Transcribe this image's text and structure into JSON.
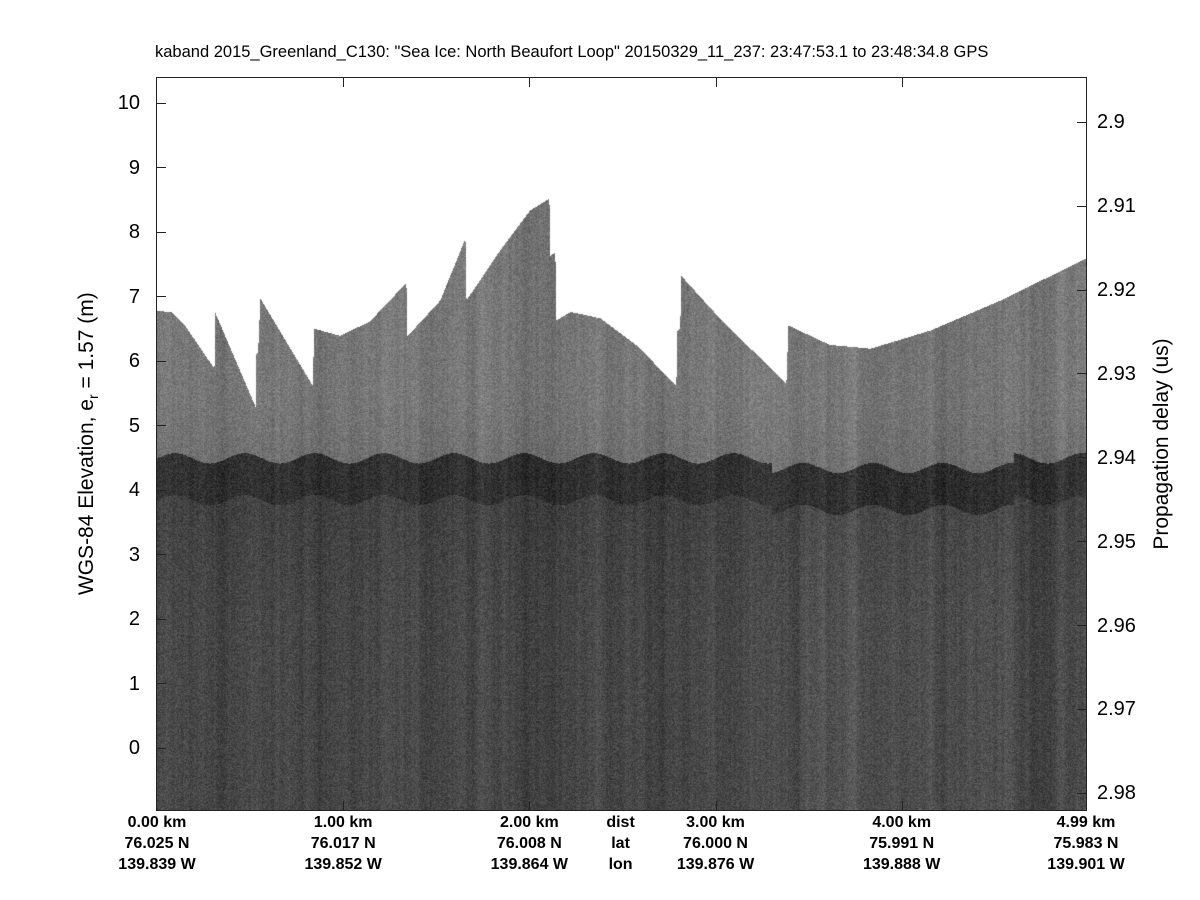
{
  "chart_data": {
    "type": "heatmap",
    "title": "kaband 2015_Greenland_C130: \"Sea Ice: North Beaufort Loop\"  20150329_11_237: 23:47:53.1 to 23:48:34.8 GPS",
    "ylabel": {
      "prefix": "WGS-84 Elevation, e",
      "subscript": "r",
      "suffix": " = 1.57 (m)"
    },
    "y2label": "Propagation delay (us)",
    "ylim": [
      -0.96,
      10.39
    ],
    "y2lim": [
      2.982,
      2.8947
    ],
    "xlim_km": [
      0,
      4.99
    ],
    "yticks": [
      0,
      1,
      2,
      3,
      4,
      5,
      6,
      7,
      8,
      9,
      10
    ],
    "y2ticks": [
      "2.9",
      "2.91",
      "2.92",
      "2.93",
      "2.94",
      "2.95",
      "2.96",
      "2.97",
      "2.98"
    ],
    "colormap": "gray",
    "x_columns": [
      {
        "km": 0,
        "dist": "0.00 km",
        "lat": "76.025 N",
        "lon": "139.839 W"
      },
      {
        "km": 1,
        "dist": "1.00 km",
        "lat": "76.017 N",
        "lon": "139.852 W"
      },
      {
        "km": 2,
        "dist": "2.00 km",
        "lat": "76.008 N",
        "lon": "139.864 W"
      },
      {
        "km": 2.49,
        "dist": "dist",
        "lat": "lat",
        "lon": "lon"
      },
      {
        "km": 3,
        "dist": "3.00 km",
        "lat": "76.000 N",
        "lon": "139.876 W"
      },
      {
        "km": 4,
        "dist": "4.00 km",
        "lat": "75.991 N",
        "lon": "139.888 W"
      },
      {
        "km": 4.99,
        "dist": "4.99 km",
        "lat": "75.983 N",
        "lon": "139.901 W"
      }
    ],
    "data_top_edge": {
      "distance_km": [
        0,
        0.08,
        0.15,
        0.306,
        0.31,
        0.527,
        0.532,
        0.54,
        0.553,
        0.833,
        0.843,
        0.98,
        1.14,
        1.337,
        1.342,
        1.52,
        1.654,
        1.66,
        1.84,
        2.0,
        2.105,
        2.11,
        2.137,
        2.143,
        2.22,
        2.38,
        2.57,
        2.787,
        2.792,
        2.808,
        2.813,
        3.03,
        3.378,
        3.389,
        3.61,
        3.83,
        4.15,
        4.53,
        4.99
      ],
      "elevation_m": [
        6.79,
        6.76,
        6.55,
        5.89,
        6.76,
        5.3,
        6.16,
        6.13,
        6.98,
        5.63,
        6.51,
        6.4,
        6.62,
        7.22,
        6.39,
        6.95,
        7.91,
        6.95,
        7.72,
        8.34,
        8.53,
        7.64,
        7.69,
        6.64,
        6.77,
        6.67,
        6.26,
        5.63,
        6.48,
        6.51,
        7.33,
        6.64,
        5.66,
        6.56,
        6.26,
        6.2,
        6.48,
        6.95,
        7.6
      ]
    },
    "ice_surface_elevation_m": 4.2
  }
}
